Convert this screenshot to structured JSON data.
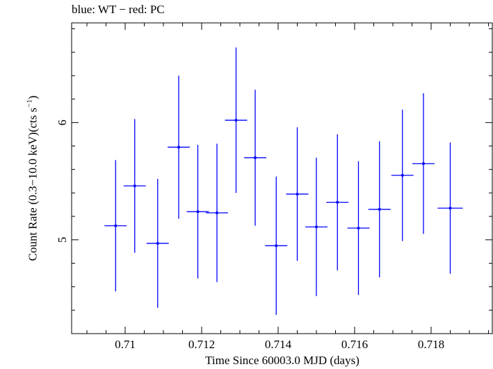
{
  "chart_data": {
    "type": "scatter",
    "title": "blue: WT − red: PC",
    "xlabel": "Time Since 60003.0 MJD (days)",
    "ylabel": {
      "main": "Count Rate (0.3−10.0 keV)(cts s",
      "sup": "−1",
      "close": ")"
    },
    "xlim": [
      0.7086,
      0.7196
    ],
    "ylim": [
      4.2,
      6.85
    ],
    "x_ticks_major": [
      0.71,
      0.712,
      0.714,
      0.716,
      0.718
    ],
    "x_tick_labels": [
      "0.71",
      "0.712",
      "0.714",
      "0.716",
      "0.718"
    ],
    "y_ticks_major": [
      5,
      6
    ],
    "y_tick_labels": [
      "5",
      "6"
    ],
    "grid": false,
    "series": [
      {
        "color": "#0000ff",
        "marker": "dot",
        "points": [
          {
            "x": 0.70975,
            "xerr": 0.00029,
            "y": 5.12,
            "yerr": 0.56
          },
          {
            "x": 0.71025,
            "xerr": 0.00029,
            "y": 5.46,
            "yerr": 0.57
          },
          {
            "x": 0.71085,
            "xerr": 0.00029,
            "y": 4.97,
            "yerr": 0.55
          },
          {
            "x": 0.7114,
            "xerr": 0.00029,
            "y": 5.79,
            "yerr": 0.61
          },
          {
            "x": 0.7119,
            "xerr": 0.00029,
            "y": 5.24,
            "yerr": 0.57
          },
          {
            "x": 0.7124,
            "xerr": 0.00029,
            "y": 5.23,
            "yerr": 0.59
          },
          {
            "x": 0.7129,
            "xerr": 0.00029,
            "y": 6.02,
            "yerr": 0.62
          },
          {
            "x": 0.7134,
            "xerr": 0.00029,
            "y": 5.7,
            "yerr": 0.58
          },
          {
            "x": 0.71395,
            "xerr": 0.00029,
            "y": 4.95,
            "yerr": 0.59
          },
          {
            "x": 0.7145,
            "xerr": 0.00029,
            "y": 5.39,
            "yerr": 0.57
          },
          {
            "x": 0.715,
            "xerr": 0.00029,
            "y": 5.11,
            "yerr": 0.59
          },
          {
            "x": 0.71555,
            "xerr": 0.00029,
            "y": 5.32,
            "yerr": 0.58
          },
          {
            "x": 0.7161,
            "xerr": 0.00029,
            "y": 5.1,
            "yerr": 0.57
          },
          {
            "x": 0.71665,
            "xerr": 0.00029,
            "y": 5.26,
            "yerr": 0.58
          },
          {
            "x": 0.71725,
            "xerr": 0.00029,
            "y": 5.55,
            "yerr": 0.56
          },
          {
            "x": 0.7178,
            "xerr": 0.00029,
            "y": 5.65,
            "yerr": 0.6
          },
          {
            "x": 0.7185,
            "xerr": 0.00033,
            "y": 5.27,
            "yerr": 0.56
          }
        ]
      }
    ]
  }
}
